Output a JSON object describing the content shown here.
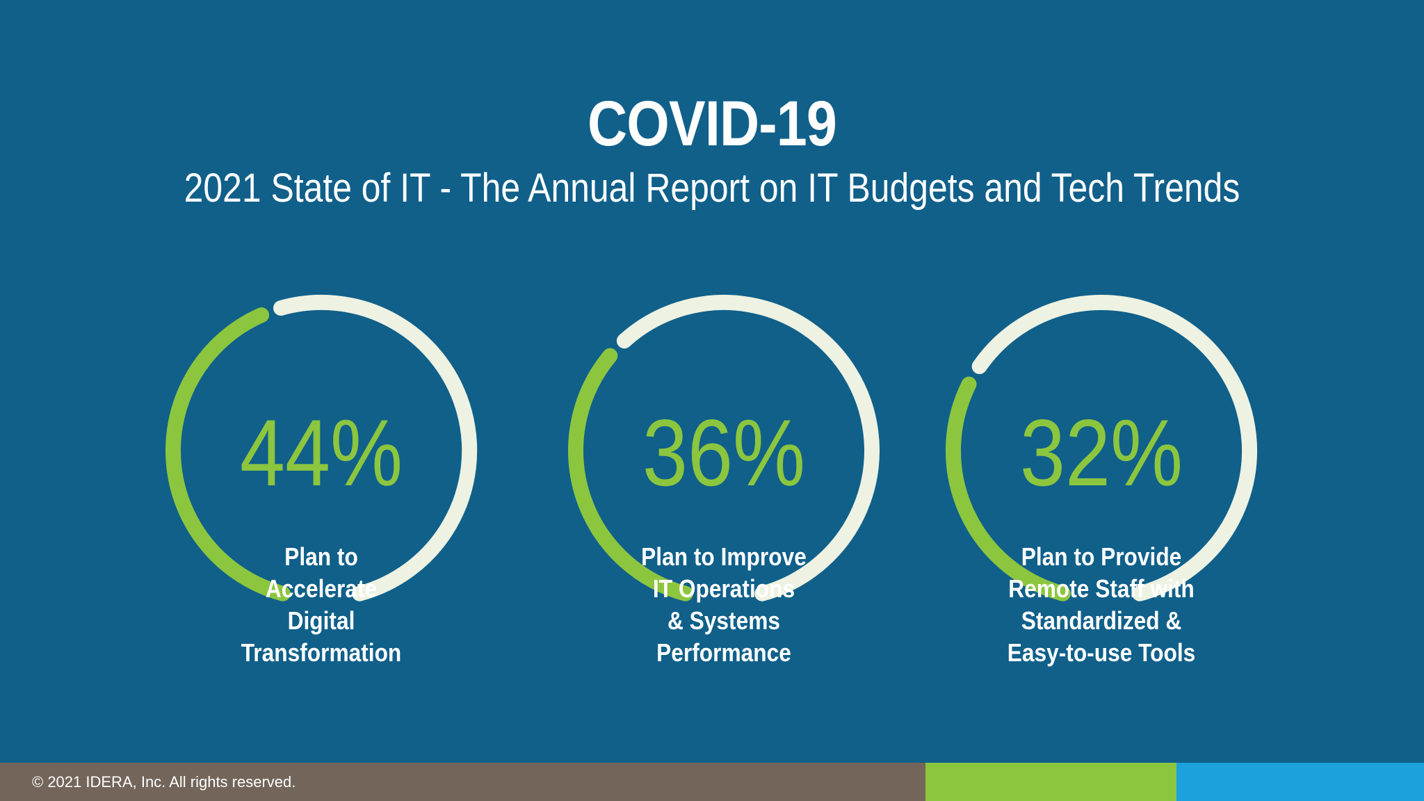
{
  "slide": {
    "title": "COVID-19",
    "subtitle": "2021 State of IT - The Annual Report on IT Budgets and Tech Trends"
  },
  "colors": {
    "background": "#10608a",
    "arc_filled": "#8cc63f",
    "arc_track": "#edf2e2",
    "value_text": "#8cc63f",
    "label_text": "#ffffff",
    "footer_brown": "#736559",
    "footer_green": "#8cc63f",
    "footer_blue": "#1ba1dc"
  },
  "chart_data": {
    "type": "gauge",
    "title": "COVID-19",
    "subtitle": "2021 State of IT - The Annual Report on IT Budgets and Tech Trends",
    "range": [
      0,
      100
    ],
    "unit": "%",
    "gauges": [
      {
        "value": 44,
        "value_label": "44%",
        "label": "Plan to\nAccelerate\nDigital\nTransformation"
      },
      {
        "value": 36,
        "value_label": "36%",
        "label": "Plan to Improve\nIT Operations\n& Systems\nPerformance"
      },
      {
        "value": 32,
        "value_label": "32%",
        "label": "Plan to Provide\nRemote Staff with\nStandardized &\nEasy-to-use Tools"
      }
    ]
  },
  "footer": {
    "copyright": "© 2021 IDERA, Inc. All rights reserved."
  }
}
